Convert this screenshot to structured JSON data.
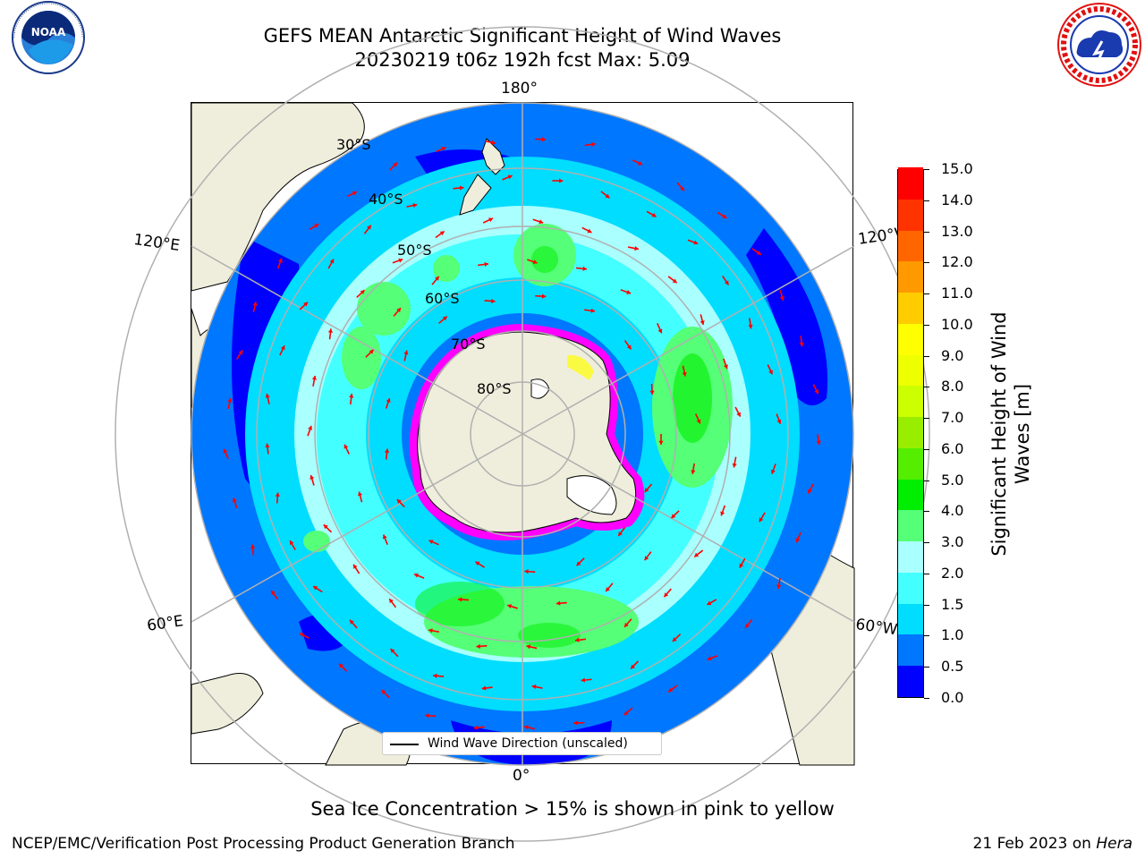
{
  "header": {
    "title_line1": "GEFS MEAN Antarctic Significant Height of Wind Waves",
    "title_line2": "20230219 t06z 192h fcst   Max: 5.09"
  },
  "logos": {
    "left": {
      "name": "noaa-logo",
      "text": "NOAA"
    },
    "right": {
      "name": "nws-logo",
      "text": "NATIONAL WEATHER SERVICE"
    }
  },
  "map": {
    "projection": "south-polar-stereographic",
    "longitude_labels": {
      "top": "180°",
      "bottom": "0°",
      "upper_left": "120°E",
      "upper_right": "120°W",
      "lower_left": "60°E",
      "lower_right": "60°W"
    },
    "latitude_labels": [
      "30°S",
      "40°S",
      "50°S",
      "60°S",
      "70°S",
      "80°S"
    ],
    "legend_entry": "Wind Wave Direction (unscaled)",
    "colors": {
      "land": "#efeedc",
      "ocean_background": "#ffffff",
      "graticule": "#b0b0b0",
      "arrows": "#ff0000",
      "sea_ice_edge": [
        "#ff00ff",
        "#ffff00"
      ]
    }
  },
  "colorbar": {
    "title": "Significant Height of Wind Waves [m]",
    "tick_labels": [
      "0.0",
      "0.5",
      "1.0",
      "1.5",
      "2.0",
      "3.0",
      "4.0",
      "5.0",
      "6.0",
      "7.0",
      "8.0",
      "9.0",
      "10.0",
      "11.0",
      "12.0",
      "13.0",
      "14.0",
      "15.0"
    ],
    "segment_colors": [
      "#0000ff",
      "#0077ff",
      "#00ddff",
      "#44ffff",
      "#aaffff",
      "#55ff77",
      "#00ee00",
      "#55ee00",
      "#99ee00",
      "#ccff00",
      "#eeff00",
      "#ffff00",
      "#ffcc00",
      "#ff9900",
      "#ff6600",
      "#ff3300",
      "#ff0000"
    ]
  },
  "caption": "Sea Ice Concentration > 15% is shown in pink to yellow",
  "footer": {
    "left": "NCEP/EMC/Verification Post Processing Product Generation Branch",
    "right_date": "21 Feb 2023 on ",
    "right_host": "Hera"
  }
}
